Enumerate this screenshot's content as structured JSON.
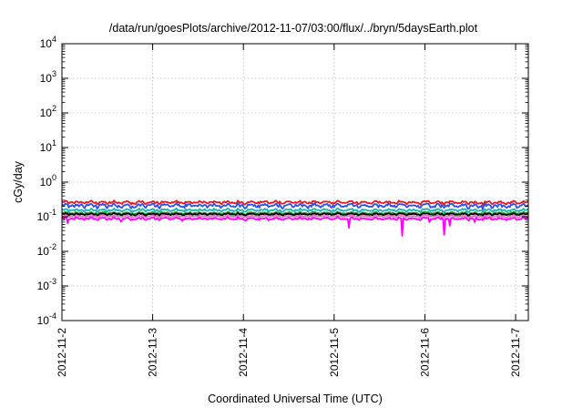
{
  "chart_data": {
    "type": "line",
    "title": "/data/run/goesPlots/archive/2012-11-07/03:00/flux/../bryn/5daysEarth.plot",
    "xlabel": "Coordinated Universal Time (UTC)",
    "ylabel": "cGy/day",
    "yscale": "log",
    "ylim": [
      0.0001,
      10000
    ],
    "xlim": [
      0,
      5.14
    ],
    "x_unit": "days from 2012-11-02 00:00 UTC",
    "grid": true,
    "legend": "none",
    "y_ticks": [
      {
        "base": "10",
        "exp": "-4",
        "value": 0.0001
      },
      {
        "base": "10",
        "exp": "-3",
        "value": 0.001
      },
      {
        "base": "10",
        "exp": "-2",
        "value": 0.01
      },
      {
        "base": "10",
        "exp": "-1",
        "value": 0.1
      },
      {
        "base": "10",
        "exp": "0",
        "value": 1
      },
      {
        "base": "10",
        "exp": "1",
        "value": 10
      },
      {
        "base": "10",
        "exp": "2",
        "value": 100
      },
      {
        "base": "10",
        "exp": "3",
        "value": 1000
      },
      {
        "base": "10",
        "exp": "4",
        "value": 10000
      }
    ],
    "x_ticks": [
      {
        "label": "2012-11-2",
        "value": 0
      },
      {
        "label": "2012-11-3",
        "value": 1
      },
      {
        "label": "2012-11-4",
        "value": 2
      },
      {
        "label": "2012-11-5",
        "value": 3
      },
      {
        "label": "2012-11-6",
        "value": 4
      },
      {
        "label": "2012-11-7",
        "value": 5
      }
    ],
    "sample_step_days": 0.0125,
    "series": [
      {
        "color": "#e41a1c",
        "baseline": 0.26,
        "amplitude": 0.11,
        "dips": []
      },
      {
        "color": "#2b50e6",
        "baseline": 0.21,
        "amplitude": 0.15,
        "dips": []
      },
      {
        "color": "#19b3b3",
        "baseline": 0.155,
        "amplitude": 0.1,
        "dips": []
      },
      {
        "color": "#2e9e2e",
        "baseline": 0.128,
        "amplitude": 0.08,
        "dips": []
      },
      {
        "color": "#000000",
        "baseline": 0.118,
        "amplitude": 0.07,
        "dips": []
      },
      {
        "color": "#e377c2",
        "baseline": 0.103,
        "amplitude": 0.07,
        "dips": []
      },
      {
        "color": "#ff00ff",
        "baseline": 0.088,
        "amplitude": 0.09,
        "dips": [
          [
            0.06,
            0.065
          ],
          [
            0.65,
            0.072
          ],
          [
            1.33,
            0.075
          ],
          [
            2.28,
            0.078
          ],
          [
            3.16,
            0.048
          ],
          [
            3.75,
            0.028
          ],
          [
            4.05,
            0.07
          ],
          [
            4.21,
            0.03
          ],
          [
            4.28,
            0.055
          ],
          [
            4.55,
            0.07
          ]
        ]
      }
    ]
  }
}
